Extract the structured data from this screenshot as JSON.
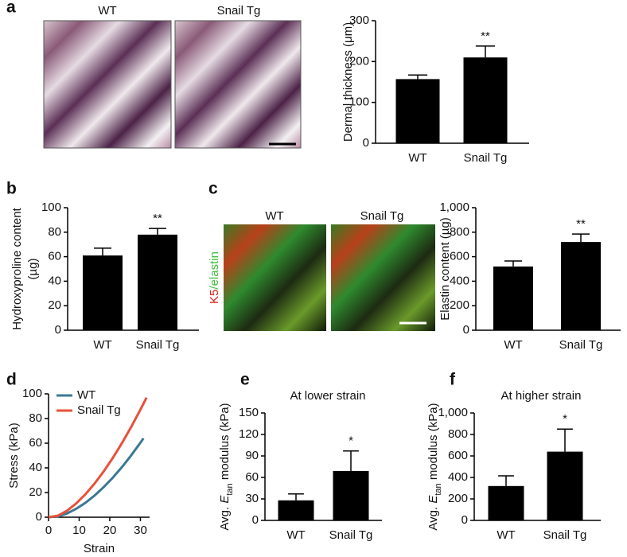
{
  "chart_data": [
    {
      "type": "bar",
      "panel": "a",
      "image_labels": [
        "WT",
        "Snail Tg"
      ],
      "ylabel": "Dermal thickness (μm)",
      "categories": [
        "WT",
        "Snail Tg"
      ],
      "values": [
        157,
        210
      ],
      "errors": [
        10,
        28
      ],
      "significance": [
        null,
        "**"
      ],
      "color": "#000000",
      "ylim": [
        0,
        300
      ],
      "yticks": [
        0,
        100,
        200,
        300
      ]
    },
    {
      "type": "bar",
      "panel": "b",
      "ylabel_lines": [
        "Hydroxyproline content",
        "(µg)"
      ],
      "categories": [
        "WT",
        "Snail Tg"
      ],
      "values": [
        61,
        78
      ],
      "errors": [
        6,
        5
      ],
      "significance": [
        null,
        "**"
      ],
      "color": "#000000",
      "ylim": [
        0,
        100
      ],
      "yticks": [
        0,
        20,
        40,
        60,
        80,
        100
      ]
    },
    {
      "type": "bar",
      "panel": "c",
      "image_labels": [
        "WT",
        "Snail Tg"
      ],
      "image_stain": [
        "K5",
        "/elastin"
      ],
      "ylabel": "Elastin content (µg)",
      "categories": [
        "WT",
        "Snail Tg"
      ],
      "values": [
        520,
        720
      ],
      "errors": [
        45,
        65
      ],
      "significance": [
        null,
        "**"
      ],
      "color": "#000000",
      "ylim": [
        0,
        1000
      ],
      "yticks": [
        0,
        200,
        400,
        600,
        800,
        {
          "value": 1000,
          "label": "1,000"
        }
      ]
    },
    {
      "type": "line",
      "panel": "d",
      "xlabel": "Strain",
      "ylabel": "Stress (kPa)",
      "x": [
        0,
        3,
        6,
        9,
        12,
        15,
        18,
        21,
        24,
        27,
        30,
        31,
        32
      ],
      "series": [
        {
          "name": "WT",
          "color": "#3b7894",
          "values": [
            0,
            0.6,
            3.0,
            6.8,
            11.6,
            17.5,
            24.4,
            32.1,
            40.7,
            50.2,
            60.4,
            64,
            null
          ]
        },
        {
          "name": "Snail Tg",
          "color": "#e8513a",
          "values": [
            0,
            1.2,
            5.2,
            11.1,
            18.5,
            27.2,
            37.1,
            48.1,
            60.2,
            73.2,
            87.2,
            92.1,
            97
          ]
        }
      ],
      "xlim": [
        0,
        33
      ],
      "xticks": [
        0,
        10,
        20,
        30
      ],
      "ylim": [
        0,
        100
      ],
      "yticks": [
        0,
        20,
        40,
        60,
        80,
        100
      ],
      "legend": "upper left"
    },
    {
      "type": "bar",
      "panel": "e",
      "title": "At lower strain",
      "ylabel_parts": [
        "Avg. ",
        "E",
        "tan",
        " modulus (kPa)"
      ],
      "categories": [
        "WT",
        "Snail Tg"
      ],
      "values": [
        28,
        69
      ],
      "errors": [
        9,
        28
      ],
      "significance": [
        null,
        "*"
      ],
      "color": "#000000",
      "ylim": [
        0,
        150
      ],
      "yticks": [
        0,
        30,
        60,
        90,
        120,
        150
      ]
    },
    {
      "type": "bar",
      "panel": "f",
      "title": "At higher strain",
      "ylabel_parts": [
        "Avg. ",
        "E",
        "tan",
        " modulus (kPa)"
      ],
      "categories": [
        "WT",
        "Snail Tg"
      ],
      "values": [
        320,
        640
      ],
      "errors": [
        95,
        210
      ],
      "significance": [
        null,
        "*"
      ],
      "color": "#000000",
      "ylim": [
        0,
        1000
      ],
      "yticks": [
        0,
        200,
        400,
        600,
        800,
        {
          "value": 1000,
          "label": "1,000"
        }
      ]
    }
  ]
}
